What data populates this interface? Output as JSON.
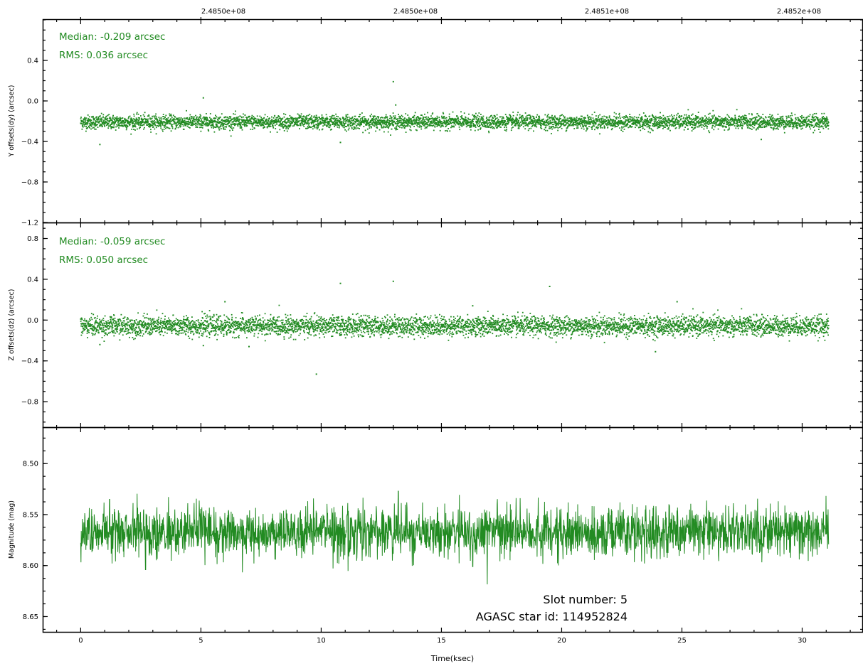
{
  "figure": {
    "top_ticks": [
      "2.4850e+08",
      "2.4850e+08",
      "2.4851e+08",
      "2.4852e+08"
    ],
    "xlabel": "Time(ksec)",
    "x_ticks": [
      0,
      5,
      10,
      15,
      20,
      25,
      30
    ],
    "xlim": [
      -1.55,
      32.5
    ],
    "colors": {
      "series": "#228b22",
      "axis": "#000000",
      "text": "#000000"
    }
  },
  "chart_data": [
    {
      "type": "scatter",
      "panel": "top",
      "ylabel": "Y offsets(dy) (arcsec)",
      "ylim": [
        -1.2,
        0.8
      ],
      "y_ticks": [
        0.4,
        0.0,
        -0.4,
        -0.8,
        -1.2
      ],
      "y_tick_labels": [
        "0.4",
        "0.0",
        "−0.4",
        "−0.8",
        "−1.2"
      ],
      "annotations": [
        "Median: -0.209 arcsec",
        "RMS: 0.036 arcsec"
      ],
      "x_range_ksec": [
        0,
        31.1
      ],
      "median": -0.209,
      "rms": 0.036,
      "outliers": [
        {
          "x": 5.1,
          "y": 0.03
        },
        {
          "x": 13.0,
          "y": 0.19
        },
        {
          "x": 13.1,
          "y": -0.04
        },
        {
          "x": 0.8,
          "y": -0.43
        },
        {
          "x": 10.8,
          "y": -0.41
        },
        {
          "x": 28.3,
          "y": -0.38
        }
      ]
    },
    {
      "type": "scatter",
      "panel": "middle",
      "ylabel": "Z offsets(dz) (arcsec)",
      "ylim": [
        -1.05,
        0.95
      ],
      "y_ticks": [
        0.8,
        0.4,
        0.0,
        -0.4,
        -0.8
      ],
      "y_tick_labels": [
        "0.8",
        "0.4",
        "0.0",
        "−0.4",
        "−0.8"
      ],
      "annotations": [
        "Median: -0.059 arcsec",
        "RMS: 0.050 arcsec"
      ],
      "x_range_ksec": [
        0,
        31.1
      ],
      "median": -0.059,
      "rms": 0.05,
      "outliers": [
        {
          "x": 10.8,
          "y": 0.36
        },
        {
          "x": 13.0,
          "y": 0.38
        },
        {
          "x": 19.5,
          "y": 0.33
        },
        {
          "x": 6.0,
          "y": 0.18
        },
        {
          "x": 24.8,
          "y": 0.18
        },
        {
          "x": 16.3,
          "y": 0.14
        },
        {
          "x": 9.8,
          "y": -0.53
        },
        {
          "x": 23.9,
          "y": -0.31
        },
        {
          "x": 5.1,
          "y": -0.25
        },
        {
          "x": 7.0,
          "y": -0.26
        },
        {
          "x": 0.8,
          "y": -0.24
        }
      ]
    },
    {
      "type": "line",
      "panel": "bottom",
      "ylabel": "Magnitude (mag)",
      "ylim": [
        8.665,
        8.465
      ],
      "inverted_y": true,
      "y_ticks": [
        8.5,
        8.55,
        8.6,
        8.65
      ],
      "y_tick_labels": [
        "8.50",
        "8.55",
        "8.60",
        "8.65"
      ],
      "annotations": [
        "Slot number: 5",
        "AGASC star id: 114952824"
      ],
      "x_range_ksec": [
        0,
        31.1
      ],
      "mean_mag": 8.567,
      "scatter_mag": 0.012,
      "extremes": [
        {
          "x": 1.2,
          "y": 8.535
        },
        {
          "x": 13.2,
          "y": 8.527
        },
        {
          "x": 2.7,
          "y": 8.604
        },
        {
          "x": 16.3,
          "y": 8.601
        }
      ]
    }
  ]
}
